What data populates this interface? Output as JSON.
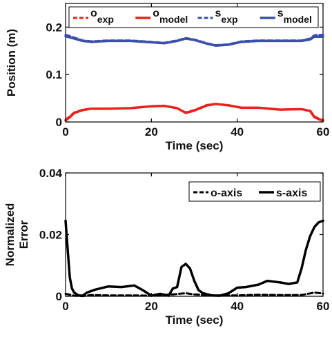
{
  "chart_data": [
    {
      "type": "line",
      "xlabel": "Time (sec)",
      "ylabel": "Position (m)",
      "xlim": [
        0,
        60
      ],
      "ylim": [
        0,
        0.25
      ],
      "xticks": [
        "0",
        "20",
        "40",
        "60"
      ],
      "yticks": [
        "0",
        "0.1",
        "0.2"
      ],
      "grid": false,
      "legend_position": "top",
      "legend": [
        {
          "base": "o",
          "sub": "exp"
        },
        {
          "base": "o",
          "sub": "model"
        },
        {
          "base": "s",
          "sub": "exp"
        },
        {
          "base": "s",
          "sub": "model"
        }
      ],
      "series": [
        {
          "name": "o_exp",
          "color": "#e8231f",
          "style": "dashed",
          "x": [
            0,
            1,
            2,
            4,
            6,
            10,
            15,
            20,
            23,
            26,
            28,
            30,
            33,
            35,
            38,
            41,
            45,
            50,
            55,
            57,
            58,
            59,
            60
          ],
          "y": [
            0.005,
            0.012,
            0.02,
            0.026,
            0.028,
            0.028,
            0.029,
            0.033,
            0.034,
            0.029,
            0.02,
            0.025,
            0.036,
            0.038,
            0.035,
            0.03,
            0.03,
            0.026,
            0.027,
            0.024,
            0.012,
            0.007,
            0.004
          ]
        },
        {
          "name": "o_model",
          "color": "#e8231f",
          "style": "solid",
          "x": [
            0,
            1,
            2,
            4,
            6,
            10,
            15,
            20,
            23,
            26,
            28,
            30,
            33,
            35,
            38,
            41,
            45,
            50,
            55,
            57,
            58,
            59,
            60
          ],
          "y": [
            0.003,
            0.01,
            0.019,
            0.025,
            0.028,
            0.028,
            0.029,
            0.033,
            0.034,
            0.029,
            0.019,
            0.024,
            0.035,
            0.038,
            0.035,
            0.03,
            0.03,
            0.026,
            0.027,
            0.023,
            0.01,
            0.006,
            0.003
          ]
        },
        {
          "name": "s_exp",
          "color": "#3a4faa",
          "style": "dashed",
          "x": [
            0,
            2,
            4,
            6,
            10,
            15,
            20,
            23,
            26,
            28,
            30,
            33,
            35,
            38,
            41,
            45,
            50,
            55,
            57,
            58,
            60
          ],
          "y": [
            0.184,
            0.178,
            0.172,
            0.17,
            0.172,
            0.172,
            0.169,
            0.167,
            0.172,
            0.177,
            0.174,
            0.166,
            0.162,
            0.164,
            0.17,
            0.172,
            0.172,
            0.172,
            0.176,
            0.183,
            0.184
          ]
        },
        {
          "name": "s_model",
          "color": "#3a4faa",
          "style": "solid",
          "x": [
            0,
            2,
            4,
            6,
            10,
            15,
            20,
            23,
            26,
            28,
            30,
            33,
            35,
            38,
            41,
            45,
            50,
            55,
            57,
            58,
            60
          ],
          "y": [
            0.181,
            0.176,
            0.171,
            0.169,
            0.171,
            0.171,
            0.168,
            0.166,
            0.171,
            0.176,
            0.173,
            0.165,
            0.161,
            0.163,
            0.169,
            0.171,
            0.171,
            0.171,
            0.174,
            0.18,
            0.18
          ]
        }
      ]
    },
    {
      "type": "line",
      "xlabel": "Time (sec)",
      "ylabel": "Normalized Error",
      "ylabel_lines": [
        "Normalized",
        "Error"
      ],
      "xlim": [
        0,
        60
      ],
      "ylim": [
        0,
        0.04
      ],
      "xticks": [
        "0",
        "20",
        "40",
        "60"
      ],
      "yticks": [
        "0",
        "0.02",
        "0.04"
      ],
      "grid": false,
      "legend_position": "top-right",
      "legend": [
        {
          "base": "o-axis",
          "sub": ""
        },
        {
          "base": "s-axis",
          "sub": ""
        }
      ],
      "series": [
        {
          "name": "o-axis",
          "color": "#000000",
          "style": "dashed",
          "x": [
            0,
            2,
            4,
            6,
            10,
            15,
            20,
            25,
            28,
            30,
            35,
            40,
            45,
            50,
            55,
            58,
            60
          ],
          "y": [
            0.0008,
            0.0002,
            0.0001,
            0.0004,
            0.0003,
            0.0003,
            0.0002,
            0.0006,
            0.001,
            0.0006,
            0.0003,
            0.0003,
            0.0005,
            0.0004,
            0.0004,
            0.0012,
            0.0009
          ]
        },
        {
          "name": "s-axis",
          "color": "#000000",
          "style": "solid",
          "x": [
            0,
            0.5,
            1,
            1.5,
            2,
            3,
            4,
            5,
            7,
            10,
            13,
            16,
            18,
            20,
            22,
            24,
            25,
            26,
            27,
            28,
            29,
            30,
            31,
            32,
            34,
            36,
            38,
            40,
            42,
            45,
            47,
            50,
            52,
            54,
            55,
            56,
            57,
            58,
            59,
            60
          ],
          "y": [
            0.0245,
            0.015,
            0.006,
            0.0025,
            0.0012,
            0.0003,
            0.0002,
            0.0012,
            0.0022,
            0.0032,
            0.003,
            0.0035,
            0.002,
            0.0002,
            0.0008,
            0.0002,
            0.0025,
            0.003,
            0.0095,
            0.0105,
            0.009,
            0.005,
            0.002,
            0.001,
            0.0003,
            0.0002,
            0.001,
            0.0028,
            0.003,
            0.0038,
            0.005,
            0.0045,
            0.004,
            0.0045,
            0.009,
            0.015,
            0.0195,
            0.0225,
            0.024,
            0.0245
          ]
        }
      ]
    }
  ]
}
